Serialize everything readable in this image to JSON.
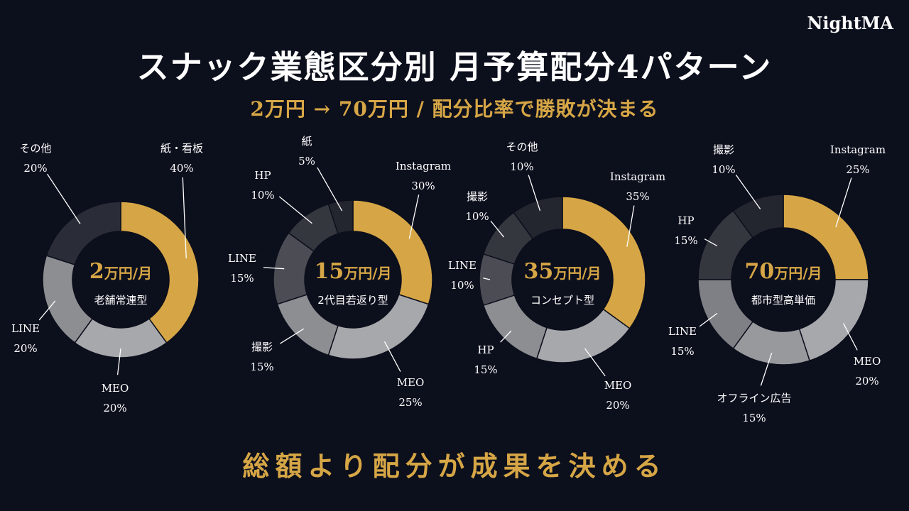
{
  "brand": "NightMA",
  "title": "スナック業態区分別 月予算配分4パターン",
  "subtitle": "2万円 → 70万円 / 配分比率で勝敗が決まる",
  "footer": "総額より配分が成果を決める",
  "colors": {
    "background": "#0c0f1c",
    "gold": "#d6a646",
    "dark": "#2a2d38",
    "mid_dark": "#4c4d54",
    "mid": "#8d8e92",
    "light": "#a7a8ac"
  },
  "chart_data": [
    {
      "type": "pie",
      "budget_number": "2",
      "budget_unit": "万円/月",
      "label": "老舗常連型",
      "slices": [
        {
          "name": "紙・看板",
          "value": 40,
          "value_label": "40%",
          "color": "#d6a646"
        },
        {
          "name": "MEO",
          "value": 20,
          "value_label": "20%",
          "color": "#a7a8ac"
        },
        {
          "name": "LINE",
          "value": 20,
          "value_label": "20%",
          "color": "#8d8e92"
        },
        {
          "name": "その他",
          "value": 20,
          "value_label": "20%",
          "color": "#2a2d38"
        }
      ]
    },
    {
      "type": "pie",
      "budget_number": "15",
      "budget_unit": "万円/月",
      "label": "2代目若返り型",
      "slices": [
        {
          "name": "Instagram",
          "value": 30,
          "value_label": "30%",
          "color": "#d6a646"
        },
        {
          "name": "MEO",
          "value": 25,
          "value_label": "25%",
          "color": "#a7a8ac"
        },
        {
          "name": "撮影",
          "value": 15,
          "value_label": "15%",
          "color": "#8d8e92"
        },
        {
          "name": "LINE",
          "value": 15,
          "value_label": "15%",
          "color": "#4c4d54"
        },
        {
          "name": "HP",
          "value": 10,
          "value_label": "10%",
          "color": "#35373f"
        },
        {
          "name": "紙",
          "value": 5,
          "value_label": "5%",
          "color": "#24262f"
        }
      ]
    },
    {
      "type": "pie",
      "budget_number": "35",
      "budget_unit": "万円/月",
      "label": "コンセプト型",
      "slices": [
        {
          "name": "Instagram",
          "value": 35,
          "value_label": "35%",
          "color": "#d6a646"
        },
        {
          "name": "MEO",
          "value": 20,
          "value_label": "20%",
          "color": "#a7a8ac"
        },
        {
          "name": "HP",
          "value": 15,
          "value_label": "15%",
          "color": "#8d8e92"
        },
        {
          "name": "LINE",
          "value": 10,
          "value_label": "10%",
          "color": "#4c4d54"
        },
        {
          "name": "撮影",
          "value": 10,
          "value_label": "10%",
          "color": "#35373f"
        },
        {
          "name": "その他",
          "value": 10,
          "value_label": "10%",
          "color": "#24262f"
        }
      ]
    },
    {
      "type": "pie",
      "budget_number": "70",
      "budget_unit": "万円/月",
      "label": "都市型高単価",
      "slices": [
        {
          "name": "Instagram",
          "value": 25,
          "value_label": "25%",
          "color": "#d6a646"
        },
        {
          "name": "MEO",
          "value": 20,
          "value_label": "20%",
          "color": "#a7a8ac"
        },
        {
          "name": "オフライン広告",
          "value": 15,
          "value_label": "15%",
          "color": "#98999d"
        },
        {
          "name": "LINE",
          "value": 15,
          "value_label": "15%",
          "color": "#7f8085"
        },
        {
          "name": "HP",
          "value": 15,
          "value_label": "15%",
          "color": "#35373f"
        },
        {
          "name": "撮影",
          "value": 10,
          "value_label": "10%",
          "color": "#24262f"
        }
      ]
    }
  ]
}
